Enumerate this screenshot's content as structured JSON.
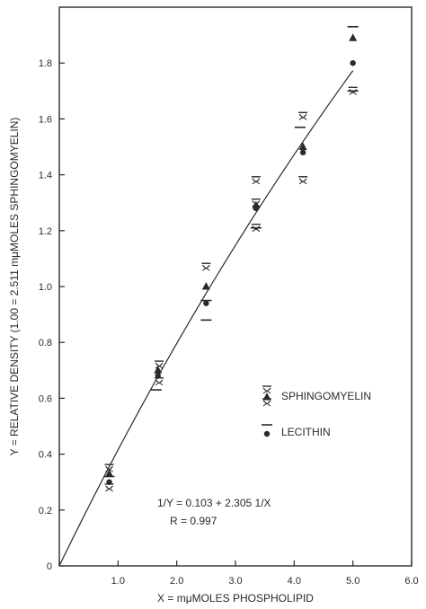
{
  "chart_data": {
    "type": "scatter",
    "xlabel": "X = mμMOLES PHOSPHOLIPID",
    "ylabel": "Y = RELATIVE DENSITY (1.00 = 2.511 mμMOLES SPHINGOMYELIN)",
    "xlim": [
      0,
      6.0
    ],
    "ylim": [
      0,
      2.0
    ],
    "x_ticks": [
      0,
      1.0,
      2.0,
      3.0,
      4.0,
      5.0,
      6.0
    ],
    "x_tick_labels": [
      "",
      "1.0",
      "2.0",
      "3.0",
      "4.0",
      "5.0",
      "6.0"
    ],
    "y_ticks": [
      0,
      0.2,
      0.4,
      0.6,
      0.8,
      1.0,
      1.2,
      1.4,
      1.6,
      1.8
    ],
    "y_tick_labels": [
      "0",
      "0.2",
      "0.4",
      "0.6",
      "0.8",
      "1.0",
      "1.2",
      "1.4",
      "1.6",
      "1.8"
    ],
    "grid": false,
    "legend_position": "right",
    "series": [
      {
        "name": "SPHINGOMYELIN",
        "marker": "triangle",
        "x": [
          0.85,
          1.68,
          2.5,
          3.35,
          4.15,
          5.0
        ],
        "y": [
          0.33,
          0.7,
          1.0,
          1.29,
          1.5,
          1.89
        ],
        "range_marks": {
          "x": [
            0.85,
            0.85,
            1.7,
            1.7,
            2.5,
            3.35,
            3.35,
            3.35,
            4.15,
            4.15,
            5.0
          ],
          "y": [
            0.35,
            0.28,
            0.72,
            0.66,
            1.07,
            1.38,
            1.3,
            1.21,
            1.61,
            1.38,
            1.7
          ]
        }
      },
      {
        "name": "LECITHIN",
        "marker": "circle",
        "x": [
          0.85,
          1.68,
          2.5,
          3.35,
          4.15,
          5.0
        ],
        "y": [
          0.3,
          0.68,
          0.94,
          1.28,
          1.48,
          1.8
        ],
        "range_marks": {
          "x": [
            0.85,
            1.65,
            2.5,
            2.5,
            3.35,
            4.1,
            5.0,
            5.0
          ],
          "y": [
            0.32,
            0.63,
            0.95,
            0.88,
            1.21,
            1.57,
            1.93,
            1.7
          ]
        }
      }
    ],
    "fit_line": {
      "intercept_inv": 0.103,
      "slope_inv": 2.305,
      "x_from": 0,
      "x_to": 5.0
    },
    "annotations": [
      "1/Y = 0.103 + 2.305 1/X",
      "R = 0.997"
    ]
  }
}
